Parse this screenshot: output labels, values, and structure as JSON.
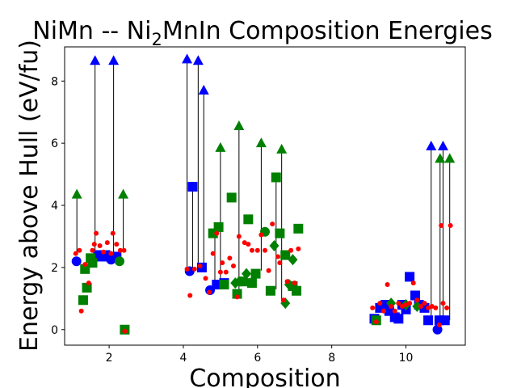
{
  "chart_data": {
    "type": "scatter",
    "title_parts": [
      "NiMn -- Ni",
      "2",
      "MnIn Composition Energies"
    ],
    "xlabel": "Composition",
    "ylabel": "Energy above Hull (eV/fu)",
    "xlim": [
      0.8,
      11.6
    ],
    "ylim": [
      -0.5,
      9.1
    ],
    "xticks": [
      2,
      4,
      6,
      8,
      10
    ],
    "yticks": [
      0,
      2,
      4,
      6,
      8
    ],
    "grid": false,
    "colors": {
      "blue": "#0000ff",
      "green": "#008000",
      "red": "#ff0000",
      "line": "#000000"
    },
    "stems": [
      {
        "x": 1.13,
        "y0": 2.5,
        "y1": 4.35
      },
      {
        "x": 1.62,
        "y0": 2.4,
        "y1": 8.65
      },
      {
        "x": 2.12,
        "y0": 2.3,
        "y1": 8.65
      },
      {
        "x": 2.38,
        "y0": 2.5,
        "y1": 4.35
      },
      {
        "x": 4.1,
        "y0": 1.9,
        "y1": 8.7
      },
      {
        "x": 4.4,
        "y0": 1.9,
        "y1": 8.65
      },
      {
        "x": 4.25,
        "y0": 1.9,
        "y1": 4.6
      },
      {
        "x": 4.55,
        "y0": 1.9,
        "y1": 7.7
      },
      {
        "x": 4.85,
        "y0": 1.3,
        "y1": 3.3
      },
      {
        "x": 5.0,
        "y0": 1.5,
        "y1": 5.85
      },
      {
        "x": 5.5,
        "y0": 1.1,
        "y1": 6.55
      },
      {
        "x": 6.1,
        "y0": 1.9,
        "y1": 6.0
      },
      {
        "x": 6.65,
        "y0": 0.9,
        "y1": 5.8
      },
      {
        "x": 6.5,
        "y0": 1.3,
        "y1": 4.9
      },
      {
        "x": 10.68,
        "y0": 0.3,
        "y1": 5.9
      },
      {
        "x": 10.92,
        "y0": 0.1,
        "y1": 5.5
      },
      {
        "x": 11.0,
        "y0": 0.3,
        "y1": 5.9
      },
      {
        "x": 11.18,
        "y0": 0.3,
        "y1": 5.5
      }
    ],
    "series": [
      {
        "marker": "triangle",
        "color": "#0000ff",
        "points": [
          [
            1.62,
            8.65
          ],
          [
            2.12,
            8.65
          ],
          [
            4.1,
            8.7
          ],
          [
            4.4,
            8.65
          ],
          [
            4.55,
            7.7
          ],
          [
            10.68,
            5.9
          ],
          [
            11.0,
            5.9
          ]
        ]
      },
      {
        "marker": "triangle",
        "color": "#008000",
        "points": [
          [
            1.13,
            4.35
          ],
          [
            2.38,
            4.35
          ],
          [
            5.0,
            5.85
          ],
          [
            5.5,
            6.55
          ],
          [
            6.1,
            6.0
          ],
          [
            6.65,
            5.8
          ],
          [
            10.92,
            5.5
          ],
          [
            11.18,
            5.5
          ]
        ]
      },
      {
        "marker": "square",
        "color": "#0000ff",
        "points": [
          [
            1.7,
            2.4
          ],
          [
            1.8,
            2.35
          ],
          [
            1.9,
            2.4
          ],
          [
            2.1,
            2.3
          ],
          [
            2.2,
            2.35
          ],
          [
            4.25,
            4.6
          ],
          [
            4.5,
            2.0
          ],
          [
            4.9,
            1.45
          ],
          [
            5.1,
            1.5
          ],
          [
            9.15,
            0.35
          ],
          [
            9.3,
            0.7
          ],
          [
            9.45,
            0.8
          ],
          [
            9.55,
            0.6
          ],
          [
            9.7,
            0.4
          ],
          [
            9.8,
            0.35
          ],
          [
            9.9,
            0.8
          ],
          [
            10.0,
            0.65
          ],
          [
            10.1,
            1.7
          ],
          [
            10.25,
            1.1
          ],
          [
            10.35,
            0.8
          ],
          [
            10.5,
            0.7
          ],
          [
            10.6,
            0.3
          ],
          [
            10.9,
            0.3
          ],
          [
            11.05,
            0.3
          ]
        ]
      },
      {
        "marker": "square",
        "color": "#008000",
        "points": [
          [
            2.42,
            0.0
          ],
          [
            1.3,
            0.95
          ],
          [
            1.35,
            1.95
          ],
          [
            1.4,
            1.35
          ],
          [
            1.5,
            2.3
          ],
          [
            1.55,
            2.15
          ],
          [
            4.8,
            3.1
          ],
          [
            4.95,
            3.3
          ],
          [
            5.1,
            1.45
          ],
          [
            5.3,
            4.25
          ],
          [
            5.45,
            1.15
          ],
          [
            5.6,
            1.55
          ],
          [
            5.75,
            3.55
          ],
          [
            5.85,
            1.5
          ],
          [
            5.95,
            1.8
          ],
          [
            6.35,
            1.25
          ],
          [
            6.5,
            4.9
          ],
          [
            6.6,
            3.1
          ],
          [
            6.75,
            2.4
          ],
          [
            6.95,
            1.4
          ],
          [
            7.05,
            1.25
          ],
          [
            7.1,
            3.25
          ],
          [
            9.2,
            0.3
          ]
        ]
      },
      {
        "marker": "circle",
        "color": "#0000ff",
        "points": [
          [
            1.12,
            2.2
          ],
          [
            2.05,
            2.25
          ],
          [
            4.17,
            1.88
          ],
          [
            4.72,
            1.27
          ],
          [
            10.85,
            0.0
          ]
        ]
      },
      {
        "marker": "circle",
        "color": "#008000",
        "points": [
          [
            2.28,
            2.2
          ],
          [
            5.55,
            1.55
          ],
          [
            6.2,
            3.15
          ]
        ]
      },
      {
        "marker": "diamond",
        "color": "#008000",
        "points": [
          [
            5.4,
            1.5
          ],
          [
            5.7,
            1.8
          ],
          [
            6.45,
            2.7
          ],
          [
            6.75,
            0.85
          ],
          [
            6.85,
            1.45
          ],
          [
            6.95,
            2.25
          ],
          [
            9.6,
            0.85
          ],
          [
            10.0,
            0.8
          ],
          [
            10.3,
            0.75
          ]
        ]
      },
      {
        "marker": "dot",
        "color": "#ff0000",
        "points": [
          [
            1.1,
            2.45
          ],
          [
            1.2,
            2.55
          ],
          [
            1.25,
            0.6
          ],
          [
            1.35,
            2.1
          ],
          [
            1.45,
            1.5
          ],
          [
            1.55,
            2.55
          ],
          [
            1.6,
            2.75
          ],
          [
            1.65,
            3.1
          ],
          [
            1.75,
            2.7
          ],
          [
            1.85,
            2.5
          ],
          [
            1.95,
            2.8
          ],
          [
            2.05,
            2.45
          ],
          [
            2.1,
            3.1
          ],
          [
            2.2,
            2.75
          ],
          [
            2.3,
            2.55
          ],
          [
            2.4,
            2.55
          ],
          [
            2.42,
            -0.05
          ],
          [
            4.1,
            1.95
          ],
          [
            4.18,
            1.1
          ],
          [
            4.3,
            1.95
          ],
          [
            4.45,
            2.05
          ],
          [
            4.6,
            1.65
          ],
          [
            4.7,
            1.2
          ],
          [
            4.8,
            2.45
          ],
          [
            4.9,
            3.1
          ],
          [
            5.0,
            1.85
          ],
          [
            5.05,
            2.15
          ],
          [
            5.15,
            1.85
          ],
          [
            5.25,
            2.3
          ],
          [
            5.35,
            2.05
          ],
          [
            5.45,
            1.05
          ],
          [
            5.5,
            3.0
          ],
          [
            5.65,
            2.8
          ],
          [
            5.75,
            2.75
          ],
          [
            5.85,
            2.55
          ],
          [
            6.0,
            2.55
          ],
          [
            6.1,
            3.05
          ],
          [
            6.2,
            2.55
          ],
          [
            6.3,
            1.9
          ],
          [
            6.4,
            3.4
          ],
          [
            6.55,
            2.35
          ],
          [
            6.6,
            2.15
          ],
          [
            6.7,
            0.95
          ],
          [
            6.8,
            1.55
          ],
          [
            6.9,
            2.55
          ],
          [
            7.0,
            1.5
          ],
          [
            7.1,
            2.6
          ],
          [
            9.1,
            0.7
          ],
          [
            9.2,
            0.25
          ],
          [
            9.3,
            0.85
          ],
          [
            9.4,
            0.6
          ],
          [
            9.5,
            1.45
          ],
          [
            9.6,
            0.75
          ],
          [
            9.7,
            0.6
          ],
          [
            9.8,
            0.85
          ],
          [
            9.9,
            0.75
          ],
          [
            10.0,
            0.8
          ],
          [
            10.1,
            0.85
          ],
          [
            10.2,
            1.5
          ],
          [
            10.3,
            0.95
          ],
          [
            10.4,
            0.75
          ],
          [
            10.5,
            0.85
          ],
          [
            10.6,
            0.7
          ],
          [
            10.7,
            0.75
          ],
          [
            10.8,
            0.7
          ],
          [
            10.9,
            0.15
          ],
          [
            10.95,
            3.35
          ],
          [
            11.0,
            0.85
          ],
          [
            11.1,
            0.7
          ],
          [
            11.2,
            3.35
          ]
        ]
      }
    ]
  }
}
